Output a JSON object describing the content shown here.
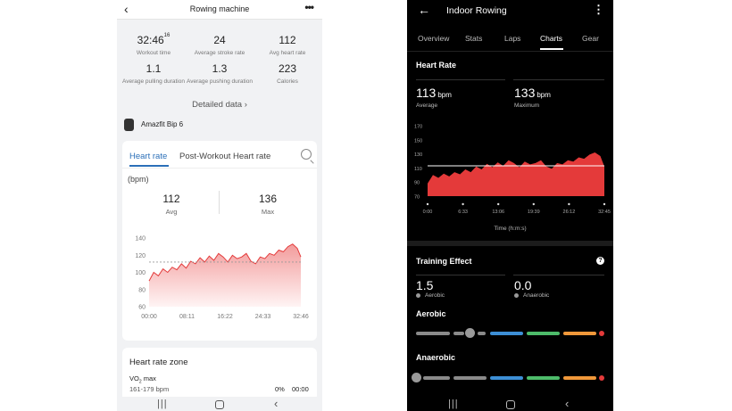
{
  "left": {
    "header": {
      "back": "‹",
      "title": "Rowing machine",
      "more": "•••"
    },
    "stats": [
      {
        "value": "32:46",
        "sup": "16",
        "label": "Workout time"
      },
      {
        "value": "24",
        "sup": "",
        "label": "Average stroke rate"
      },
      {
        "value": "112",
        "sup": "",
        "label": "Avg heart rate"
      },
      {
        "value": "1.1",
        "sup": "",
        "label": "Average pulling duration"
      },
      {
        "value": "1.3",
        "sup": "",
        "label": "Average pushing duration"
      },
      {
        "value": "223",
        "sup": "",
        "label": "Calories"
      }
    ],
    "detailed": "Detailed data ›",
    "device": "Amazfit Bip 6",
    "tabs": {
      "heart_rate": "Heart rate",
      "post": "Post-Workout Heart rate"
    },
    "unit": "(bpm)",
    "avg": {
      "value": "112",
      "label": "Avg"
    },
    "max": {
      "value": "136",
      "label": "Max"
    },
    "zone": {
      "title": "Heart rate zone",
      "vo2": "VO",
      "vo2_sub": "2",
      "vo2_suffix": " max",
      "range": "161-179 bpm",
      "pct": "0%",
      "time": "00:00"
    },
    "nav": {
      "menu": "|||",
      "back": "‹"
    }
  },
  "right": {
    "header": {
      "back": "←",
      "title": "Indoor Rowing",
      "more": "⋮"
    },
    "tabs": [
      "Overview",
      "Stats",
      "Laps",
      "Charts",
      "Gear"
    ],
    "active_tab": "Charts",
    "heart_rate_title": "Heart Rate",
    "avg": {
      "value": "113",
      "unit": "bpm",
      "label": "Average"
    },
    "max": {
      "value": "133",
      "unit": "bpm",
      "label": "Maximum"
    },
    "time_label": "Time (h:m:s)",
    "training_title": "Training Effect",
    "help": "?",
    "aerobic": {
      "value": "1.5",
      "label": "Aerobic"
    },
    "anaerobic": {
      "value": "0.0",
      "label": "Anaerobic"
    },
    "aerobic_bar_label": "Aerobic",
    "anaerobic_bar_label": "Anaerobic",
    "nav": {
      "menu": "|||",
      "back": "‹"
    }
  },
  "colors": {
    "accent_blue": "#2b6fb8",
    "hr_red": "#e43a3a",
    "hr_pink": "#f08a8a",
    "bar_gray": "#8a8a8a",
    "bar_blue": "#3d8fd6",
    "bar_green": "#4dbb6a",
    "bar_orange": "#f0983a"
  },
  "chart_data": [
    {
      "type": "area",
      "title": "",
      "ylabel": "(bpm)",
      "ylim": [
        60,
        140
      ],
      "yticks": [
        "140",
        "120",
        "100",
        "80",
        "60"
      ],
      "xticks": [
        "00:00",
        "08:11",
        "16:22",
        "24:33",
        "32:46"
      ],
      "reference_line": 112,
      "x": [
        0,
        1,
        2,
        3,
        4,
        5,
        6,
        7,
        8,
        9,
        10,
        11,
        12,
        13,
        14,
        15,
        16,
        17,
        18,
        19,
        20,
        21,
        22,
        23,
        24,
        25,
        26,
        27,
        28,
        29,
        30,
        31,
        32,
        32.77
      ],
      "series": [
        {
          "values": [
            90,
            100,
            96,
            104,
            100,
            106,
            103,
            110,
            105,
            113,
            110,
            117,
            112,
            119,
            114,
            122,
            118,
            112,
            120,
            116,
            118,
            122,
            113,
            110,
            118,
            116,
            122,
            120,
            126,
            124,
            130,
            133,
            128,
            118
          ]
        }
      ]
    },
    {
      "type": "area",
      "title": "",
      "xlabel": "Time (h:m:s)",
      "ylim": [
        70,
        170
      ],
      "yticks": [
        "170",
        "150",
        "130",
        "110",
        "90",
        "70"
      ],
      "xticks": [
        "0:00",
        "6:33",
        "13:06",
        "19:39",
        "26:12",
        "32:45"
      ],
      "reference_line": 113,
      "x": [
        0,
        1,
        2,
        3,
        4,
        5,
        6,
        7,
        8,
        9,
        10,
        11,
        12,
        13,
        14,
        15,
        16,
        17,
        18,
        19,
        20,
        21,
        22,
        23,
        24,
        25,
        26,
        27,
        28,
        29,
        30,
        31,
        32,
        32.75
      ],
      "series": [
        {
          "values": [
            88,
            100,
            96,
            102,
            98,
            104,
            101,
            108,
            104,
            112,
            108,
            116,
            111,
            118,
            113,
            121,
            117,
            111,
            119,
            115,
            117,
            121,
            112,
            109,
            117,
            115,
            121,
            119,
            125,
            123,
            129,
            132,
            127,
            112
          ]
        }
      ]
    }
  ]
}
